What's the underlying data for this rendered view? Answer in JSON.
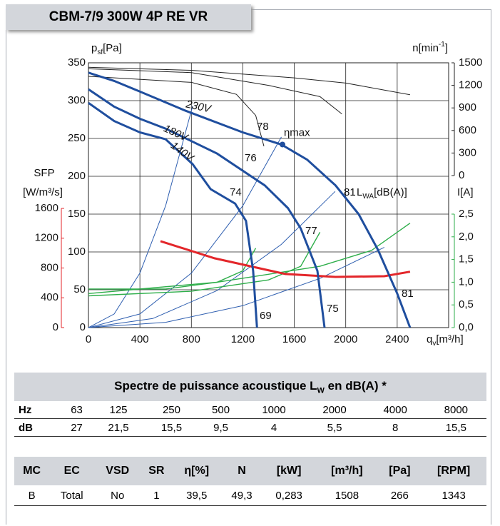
{
  "chart_data": {
    "type": "line",
    "title": "CBM-7/9 300W 4P RE VR",
    "x_label": {
      "main": "q",
      "sub": "v",
      "unit": "[m³/h]"
    },
    "y_label": {
      "main": "p",
      "sub": "sf",
      "unit": "[Pa]"
    },
    "y2_label": {
      "main": "n[min",
      "sup": "-1",
      "end": "]"
    },
    "xlim": [
      0,
      2800
    ],
    "xticks": [
      0,
      400,
      800,
      1200,
      1600,
      2000,
      2400
    ],
    "ylim": [
      0,
      350
    ],
    "yticks": [
      0,
      50,
      100,
      150,
      200,
      250,
      300,
      350
    ],
    "y2lim": [
      0,
      1500
    ],
    "y2ticks": [
      0,
      300,
      600,
      900,
      1200,
      1500
    ],
    "sfp_axis": {
      "label": "SFP",
      "unit": "[W/m³/s]",
      "color": "#e3262a",
      "lim": [
        0,
        1600
      ],
      "ticks": [
        0,
        400,
        800,
        1200,
        1600
      ]
    },
    "current_axis": {
      "label": "I[A]",
      "color": "#2eae4a",
      "lim": [
        0,
        2.5
      ],
      "ticks": [
        {
          "value": 0,
          "label": "0,0"
        },
        {
          "value": 0.5,
          "label": "0,5"
        },
        {
          "value": 1,
          "label": "1,0"
        },
        {
          "value": 1.5,
          "label": "1,5"
        },
        {
          "value": 2,
          "label": "2,0"
        },
        {
          "value": 2.5,
          "label": "2,5"
        }
      ]
    },
    "grid": true,
    "fan_curves": [
      {
        "name": "230V",
        "color": "#1f4e9e",
        "x": [
          0,
          200,
          400,
          750,
          1200,
          1500,
          1700,
          1920,
          2100,
          2250,
          2400,
          2500
        ],
        "values": [
          337,
          326,
          312,
          287,
          258,
          242,
          222,
          188,
          150,
          103,
          45,
          0
        ]
      },
      {
        "name": "180V",
        "color": "#1f4e9e",
        "x": [
          0,
          200,
          400,
          600,
          1000,
          1370,
          1550,
          1650,
          1780,
          1835
        ],
        "values": [
          315,
          292,
          276,
          263,
          230,
          188,
          158,
          131,
          75,
          0
        ]
      },
      {
        "name": "140V",
        "color": "#1f4e9e",
        "x": [
          0,
          200,
          400,
          600,
          810,
          950,
          1140,
          1225,
          1280,
          1310
        ],
        "values": [
          297,
          273,
          258,
          249,
          216,
          183,
          164,
          141,
          75,
          0
        ]
      }
    ],
    "speed_curves": {
      "color": "#222222",
      "series": [
        {
          "x": [
            0,
            800,
            1600,
            2000,
            2500
          ],
          "values": [
            1440,
            1400,
            1300,
            1230,
            1075
          ]
        },
        {
          "x": [
            0,
            800,
            1400,
            1800,
            1970
          ],
          "values": [
            1420,
            1370,
            1200,
            1050,
            820
          ]
        },
        {
          "x": [
            0,
            800,
            1150,
            1300,
            1364
          ],
          "values": [
            1320,
            1240,
            1080,
            800,
            390
          ]
        }
      ]
    },
    "current_curves": {
      "color": "#2eae4a",
      "series": [
        {
          "x": [
            0,
            1000,
            1800,
            2200,
            2500
          ],
          "values": [
            0.75,
            1.0,
            1.35,
            1.7,
            2.3
          ]
        },
        {
          "x": [
            0,
            800,
            1400,
            1650,
            1800
          ],
          "values": [
            0.7,
            0.8,
            1.05,
            1.35,
            2.1
          ]
        },
        {
          "x": [
            0,
            600,
            1000,
            1200,
            1300
          ],
          "values": [
            0.85,
            0.85,
            1.0,
            1.25,
            1.75
          ]
        }
      ]
    },
    "sfp_curve": {
      "color": "#e3262a",
      "x": [
        560,
        980,
        1530,
        1920,
        2300,
        2500
      ],
      "values": [
        1160,
        930,
        720,
        680,
        690,
        750
      ]
    },
    "system_curves": {
      "color": "#2f5fb0",
      "series": [
        {
          "x": [
            0,
            200,
            400,
            600,
            810
          ],
          "values": [
            0,
            18,
            72,
            161,
            293
          ]
        },
        {
          "x": [
            0,
            400,
            800,
            1200,
            1500
          ],
          "values": [
            0,
            18,
            72,
            161,
            252
          ]
        },
        {
          "x": [
            0,
            500,
            1000,
            1500,
            1918
          ],
          "values": [
            0,
            12,
            49,
            110,
            180
          ]
        },
        {
          "x": [
            0,
            600,
            1200,
            1800,
            2300
          ],
          "values": [
            0,
            7,
            29,
            65,
            106
          ]
        }
      ]
    },
    "duty_point": {
      "label": "ηmax",
      "x": 1508,
      "y": 242,
      "color": "#1f4e9e"
    },
    "sound_labels": [
      "78",
      "76",
      "74",
      "81",
      "77",
      "81",
      "75",
      "69"
    ],
    "sound_unit": {
      "main": "L",
      "sub": "WA",
      "unit": "[dB(A)]"
    }
  },
  "spectrum_table": {
    "title": [
      "Spectre de puissance acoustique L",
      "W",
      " en dB(A) *"
    ],
    "rows": [
      [
        "Hz",
        "63",
        "125",
        "250",
        "500",
        "1000",
        "2000",
        "4000",
        "8000"
      ],
      [
        "dB",
        "27",
        "21,5",
        "15,5",
        "9,5",
        "4",
        "5,5",
        "8",
        "15,5"
      ]
    ]
  },
  "spec_table": {
    "header": [
      "MC",
      "EC",
      "VSD",
      "SR",
      "η[%]",
      "N",
      "[kW]",
      "[m³/h]",
      "[Pa]",
      "[RPM]"
    ],
    "rows": [
      [
        "B",
        "Total",
        "No",
        "1",
        "39,5",
        "49,3",
        "0,283",
        "1508",
        "266",
        "1343"
      ]
    ]
  }
}
